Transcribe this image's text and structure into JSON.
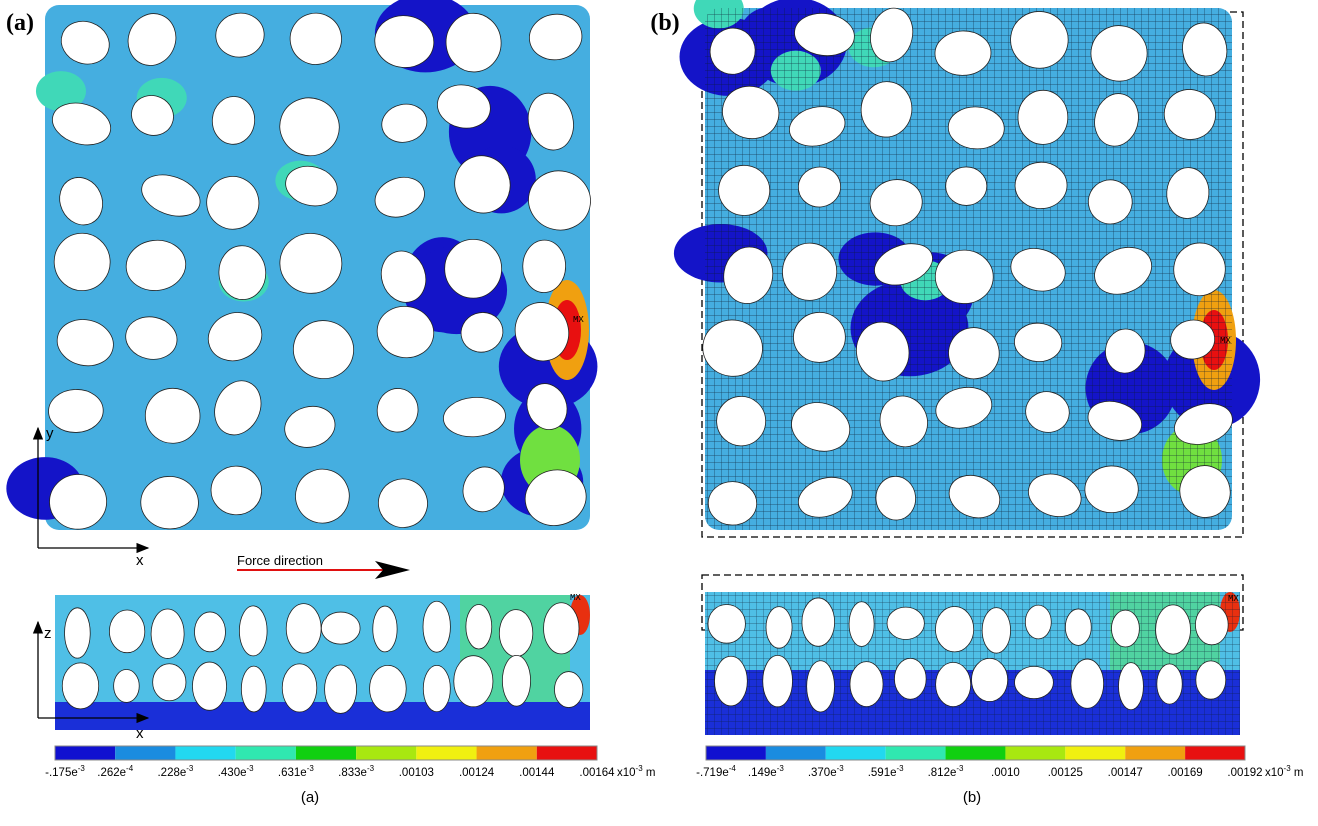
{
  "panels": [
    {
      "label": "(a)",
      "caption": "(a)",
      "axes": {
        "top": [
          "y",
          "x"
        ],
        "side": [
          "z",
          "x"
        ]
      },
      "force_direction": "Force direction",
      "max_labels": [
        "MX",
        "MX"
      ],
      "colorbar": {
        "labels": [
          {
            "text": "-.175e",
            "sup": "-3"
          },
          {
            "text": ".262e",
            "sup": "-4"
          },
          {
            "text": ".228e",
            "sup": "-3"
          },
          {
            "text": ".430e",
            "sup": "-3"
          },
          {
            "text": ".631e",
            "sup": "-3"
          },
          {
            "text": ".833e",
            "sup": "-3"
          },
          {
            "text": ".00103"
          },
          {
            "text": ".00124"
          },
          {
            "text": ".00144"
          },
          {
            "text": ".00164"
          }
        ],
        "unit": {
          "text": "x10",
          "sup": "-3",
          "after": " m"
        }
      }
    },
    {
      "label": "(b)",
      "caption": "(b)",
      "max_labels": [
        "MX",
        "MX"
      ],
      "colorbar": {
        "labels": [
          {
            "text": "-.719e",
            "sup": "-4"
          },
          {
            "text": ".149e",
            "sup": "-3"
          },
          {
            "text": ".370e",
            "sup": "-3"
          },
          {
            "text": ".591e",
            "sup": "-3"
          },
          {
            "text": ".812e",
            "sup": "-3"
          },
          {
            "text": ".0010"
          },
          {
            "text": ".00125"
          },
          {
            "text": ".00147"
          },
          {
            "text": ".00169"
          },
          {
            "text": ".00192"
          }
        ],
        "unit": {
          "text": "x10",
          "sup": "-3",
          "after": " m"
        }
      }
    }
  ],
  "colorbar_colors": [
    "#1010d0",
    "#1a8ce0",
    "#22d8f0",
    "#30e8b0",
    "#10d010",
    "#a8e810",
    "#f0f010",
    "#f0a010",
    "#e81010"
  ]
}
